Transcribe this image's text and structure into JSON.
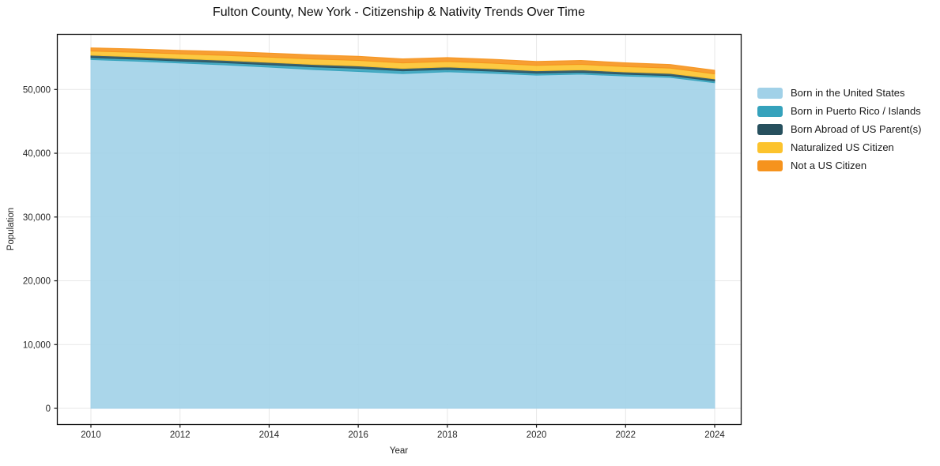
{
  "chart_data": {
    "type": "area",
    "stacked": true,
    "title": "Fulton County, New York - Citizenship & Nativity Trends Over Time",
    "xlabel": "Year",
    "ylabel": "Population",
    "x": [
      2010,
      2011,
      2012,
      2013,
      2014,
      2015,
      2016,
      2017,
      2018,
      2019,
      2020,
      2021,
      2022,
      2023,
      2024
    ],
    "series": [
      {
        "name": "Born in the United States",
        "color": "#a1d1e8",
        "values": [
          54700,
          54450,
          54150,
          53860,
          53500,
          53120,
          52820,
          52500,
          52780,
          52550,
          52250,
          52400,
          52100,
          51900,
          51050
        ]
      },
      {
        "name": "Born in Puerto Rico / Islands",
        "color": "#35a2bc",
        "values": [
          300,
          310,
          320,
          335,
          380,
          430,
          500,
          440,
          370,
          340,
          310,
          300,
          290,
          285,
          280
        ]
      },
      {
        "name": "Born Abroad of US Parent(s)",
        "color": "#27505e",
        "values": [
          370,
          370,
          370,
          370,
          370,
          370,
          370,
          370,
          370,
          370,
          370,
          370,
          355,
          335,
          325
        ]
      },
      {
        "name": "Naturalized US Citizen",
        "color": "#fcc32d",
        "values": [
          660,
          700,
          745,
          780,
          815,
          845,
          865,
          865,
          865,
          865,
          865,
          865,
          840,
          820,
          795
        ]
      },
      {
        "name": "Not a US Citizen",
        "color": "#f6931d",
        "values": [
          495,
          525,
          560,
          620,
          640,
          655,
          660,
          630,
          620,
          620,
          620,
          620,
          600,
          580,
          555
        ]
      }
    ],
    "xticks": [
      "2010",
      "2012",
      "2014",
      "2016",
      "2018",
      "2020",
      "2022",
      "2024"
    ],
    "yticks": [
      "0",
      "10,000",
      "20,000",
      "30,000",
      "40,000",
      "50,000"
    ],
    "ytick_values": [
      0,
      10000,
      20000,
      30000,
      40000,
      50000
    ],
    "xtick_values": [
      2010,
      2012,
      2014,
      2016,
      2018,
      2020,
      2022,
      2024
    ],
    "ylim": [
      0,
      58700
    ],
    "grid": true,
    "legend_position": "right",
    "background_color": "#ffffff",
    "axis_color": "#111111",
    "grid_color": "#e7e7e7"
  }
}
